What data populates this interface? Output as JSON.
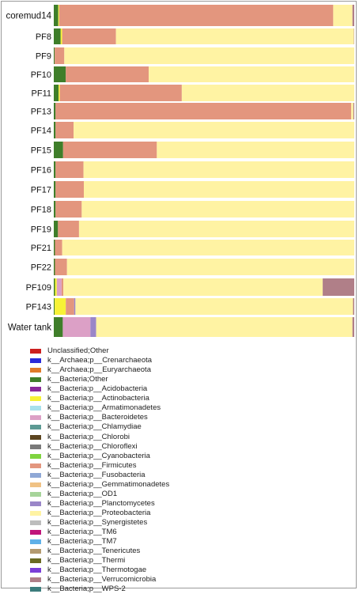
{
  "chart_data": {
    "type": "bar",
    "orientation": "horizontal",
    "stacked": true,
    "normalized": true,
    "xlim": [
      0,
      100
    ],
    "grid": false,
    "legend_placement": "bottom",
    "categories": [
      "coremud14",
      "PF8",
      "PF9",
      "PF10",
      "PF11",
      "PF13",
      "PF14",
      "PF15",
      "PF16",
      "PF17",
      "PF18",
      "PF19",
      "PF21",
      "PF22",
      "PF109",
      "PF143",
      "Water tank"
    ],
    "series": [
      {
        "name": "Unclassified;Other",
        "color": "#cc1f1f",
        "values": [
          0,
          0,
          0,
          0,
          0,
          0,
          0,
          0,
          0,
          0,
          0,
          0,
          0,
          0,
          0,
          0,
          0
        ]
      },
      {
        "name": "k__Archaea;p__Crenarchaeota",
        "color": "#2a2ad9",
        "values": [
          0,
          0,
          0,
          0,
          0,
          0,
          0,
          0,
          0,
          0,
          0,
          0,
          0,
          0,
          0,
          0,
          0
        ]
      },
      {
        "name": "k__Archaea;p__Euryarchaeota",
        "color": "#e07a2a",
        "values": [
          0,
          0,
          0,
          0,
          0,
          0,
          0,
          0,
          0,
          0,
          0,
          0,
          0,
          0,
          0,
          0,
          0
        ]
      },
      {
        "name": "k__Bacteria;Other",
        "color": "#3f7e2a",
        "values": [
          1.5,
          2.3,
          0.3,
          4.0,
          1.6,
          0.6,
          0.6,
          3.1,
          0.6,
          0.6,
          0.6,
          1.4,
          0.4,
          0.4,
          0.4,
          0.3,
          3.0
        ]
      },
      {
        "name": "k__Bacteria;p__Acidobacteria",
        "color": "#8a2a9a",
        "values": [
          0,
          0,
          0,
          0,
          0,
          0,
          0,
          0,
          0,
          0,
          0,
          0,
          0,
          0,
          0,
          0,
          0
        ]
      },
      {
        "name": "k__Bacteria;p__Actinobacteria",
        "color": "#f7f236",
        "values": [
          0.3,
          0.5,
          0,
          0,
          0.4,
          0,
          0,
          0,
          0,
          0,
          0,
          0,
          0,
          0,
          0.6,
          3.7,
          0
        ]
      },
      {
        "name": "k__Bacteria;p__Armatimonadetes",
        "color": "#a8e1ec",
        "values": [
          0,
          0,
          0,
          0,
          0,
          0,
          0,
          0,
          0,
          0,
          0,
          0,
          0,
          0,
          0,
          0,
          0
        ]
      },
      {
        "name": "k__Bacteria;p__Bacteroidetes",
        "color": "#dca0c6",
        "values": [
          0,
          0,
          0,
          0,
          0,
          0,
          0,
          0,
          0,
          0,
          0,
          0,
          0,
          0,
          1.6,
          0,
          9.2
        ]
      },
      {
        "name": "k__Bacteria;p__Chlamydiae",
        "color": "#5c9a93",
        "values": [
          0,
          0,
          0,
          0,
          0,
          0,
          0,
          0,
          0,
          0,
          0,
          0,
          0,
          0,
          0,
          0,
          0
        ]
      },
      {
        "name": "k__Bacteria;p__Chlorobi",
        "color": "#5c4520",
        "values": [
          0,
          0,
          0,
          0,
          0,
          0,
          0,
          0,
          0,
          0,
          0,
          0,
          0,
          0,
          0,
          0,
          0
        ]
      },
      {
        "name": "k__Bacteria;p__Chloroflexi",
        "color": "#7a7a7a",
        "values": [
          0,
          0,
          0,
          0,
          0,
          0,
          0,
          0,
          0,
          0,
          0,
          0,
          0,
          0,
          0,
          0,
          0
        ]
      },
      {
        "name": "k__Bacteria;p__Cyanobacteria",
        "color": "#7fd43f",
        "values": [
          0,
          0,
          0,
          0,
          0,
          0,
          0,
          0,
          0,
          0,
          0,
          0,
          0,
          0,
          0,
          0,
          0
        ]
      },
      {
        "name": "k__Bacteria;p__Firmicutes",
        "color": "#e3967e",
        "values": [
          91.2,
          17.9,
          3.2,
          27.6,
          40.6,
          98.4,
          6.0,
          31.2,
          9.3,
          9.4,
          8.7,
          7.0,
          2.4,
          4.0,
          0.6,
          2.8,
          0
        ]
      },
      {
        "name": "k__Bacteria;p__Fusobacteria",
        "color": "#8fa8d6",
        "values": [
          0,
          0,
          0,
          0,
          0,
          0,
          0,
          0,
          0,
          0,
          0,
          0,
          0,
          0,
          0,
          0,
          0
        ]
      },
      {
        "name": "k__Bacteria;p__Gemmatimonadetes",
        "color": "#f0c285",
        "values": [
          0,
          0,
          0,
          0,
          0,
          0,
          0,
          0,
          0,
          0,
          0,
          0,
          0,
          0,
          0,
          0,
          0
        ]
      },
      {
        "name": "k__Bacteria;p__OD1",
        "color": "#a6d49a",
        "values": [
          0,
          0,
          0,
          0,
          0,
          0,
          0,
          0,
          0,
          0,
          0,
          0,
          0,
          0,
          0,
          0,
          0
        ]
      },
      {
        "name": "k__Bacteria;p__Planctomycetes",
        "color": "#9a86c8",
        "values": [
          0,
          0,
          0,
          0,
          0,
          0,
          0,
          0,
          0,
          0,
          0,
          0,
          0,
          0,
          0,
          0.4,
          1.9
        ]
      },
      {
        "name": "k__Bacteria;p__Proteobacteria",
        "color": "#fff3a3",
        "values": [
          6.4,
          79.2,
          96.5,
          68.4,
          57.4,
          0.7,
          93.4,
          65.7,
          90.1,
          90.0,
          90.7,
          91.6,
          97.2,
          95.6,
          86.3,
          92.4,
          85.3
        ]
      },
      {
        "name": "k__Bacteria;p__Synergistetes",
        "color": "#bdbdbd",
        "values": [
          0,
          0,
          0,
          0,
          0,
          0,
          0,
          0,
          0,
          0,
          0,
          0,
          0,
          0,
          0,
          0,
          0
        ]
      },
      {
        "name": "k__Bacteria;p__TM6",
        "color": "#c0157a",
        "values": [
          0,
          0,
          0,
          0,
          0,
          0,
          0,
          0,
          0,
          0,
          0,
          0,
          0,
          0,
          0,
          0,
          0
        ]
      },
      {
        "name": "k__Bacteria;p__TM7",
        "color": "#5fb0e8",
        "values": [
          0,
          0,
          0,
          0,
          0,
          0,
          0,
          0,
          0,
          0,
          0,
          0,
          0,
          0,
          0,
          0,
          0
        ]
      },
      {
        "name": "k__Bacteria;p__Tenericutes",
        "color": "#b39a70",
        "values": [
          0,
          0,
          0,
          0,
          0,
          0,
          0,
          0,
          0,
          0,
          0,
          0,
          0,
          0,
          0,
          0,
          0
        ]
      },
      {
        "name": "k__Bacteria;p__Thermi",
        "color": "#6a6a22",
        "values": [
          0,
          0,
          0,
          0,
          0,
          0,
          0,
          0,
          0,
          0,
          0,
          0,
          0,
          0,
          0,
          0,
          0
        ]
      },
      {
        "name": "k__Bacteria;p__Thermotogae",
        "color": "#7b3fd8",
        "values": [
          0,
          0,
          0,
          0,
          0,
          0,
          0,
          0,
          0,
          0,
          0,
          0,
          0,
          0,
          0,
          0,
          0
        ]
      },
      {
        "name": "k__Bacteria;p__Verrucomicrobia",
        "color": "#b07f88",
        "values": [
          0.6,
          0.1,
          0,
          0,
          0,
          0.3,
          0,
          0,
          0,
          0,
          0,
          0,
          0,
          0,
          10.5,
          0.4,
          0.6
        ]
      },
      {
        "name": "k__Bacteria;p__WPS-2",
        "color": "#3c7c7c",
        "values": [
          0,
          0,
          0,
          0,
          0,
          0,
          0,
          0,
          0,
          0,
          0,
          0,
          0,
          0,
          0,
          0,
          0
        ]
      }
    ]
  }
}
